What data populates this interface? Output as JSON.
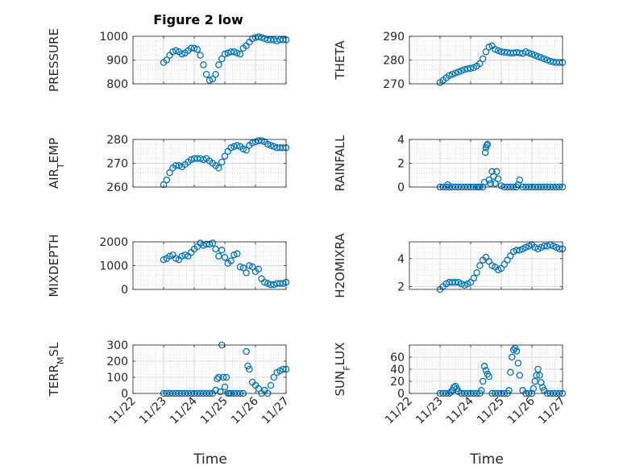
{
  "title": "Figure 2 low",
  "xlabel": "Time",
  "colors": {
    "marker": "#0072BD",
    "axis": "#262626",
    "grid": "#c8c8c8"
  },
  "x_ticks": [
    "11/22",
    "11/23",
    "11/24",
    "11/25",
    "11/26",
    "11/27"
  ],
  "chart_data": [
    {
      "type": "scatter",
      "ylabel": "PRESSURE",
      "ylim": [
        800,
        1000
      ],
      "yticks": [
        800,
        900,
        1000
      ],
      "ytick_labels": [
        "800",
        "900",
        "1000"
      ],
      "grid": true,
      "x": [
        23.0,
        23.1,
        23.2,
        23.3,
        23.4,
        23.5,
        23.6,
        23.7,
        23.8,
        23.9,
        24.0,
        24.1,
        24.2,
        24.3,
        24.4,
        24.5,
        24.6,
        24.7,
        24.8,
        24.9,
        25.0,
        25.1,
        25.2,
        25.3,
        25.4,
        25.5,
        25.6,
        25.7,
        25.8,
        25.9,
        26.0,
        26.1,
        26.2,
        26.3,
        26.4,
        26.5,
        26.6,
        26.7,
        26.8,
        26.9,
        27.0
      ],
      "y": [
        890,
        900,
        920,
        935,
        940,
        935,
        925,
        930,
        940,
        950,
        950,
        945,
        920,
        880,
        840,
        815,
        820,
        840,
        880,
        905,
        925,
        930,
        935,
        935,
        930,
        925,
        950,
        960,
        975,
        990,
        995,
        998,
        995,
        990,
        985,
        985,
        985,
        980,
        985,
        985,
        985
      ]
    },
    {
      "type": "scatter",
      "ylabel": "THETA",
      "ylim": [
        270,
        290
      ],
      "yticks": [
        270,
        280,
        290
      ],
      "ytick_labels": [
        "270",
        "280",
        "290"
      ],
      "grid": true,
      "x": [
        23.0,
        23.1,
        23.2,
        23.3,
        23.4,
        23.5,
        23.6,
        23.7,
        23.8,
        23.9,
        24.0,
        24.1,
        24.2,
        24.3,
        24.4,
        24.5,
        24.6,
        24.7,
        24.8,
        24.9,
        25.0,
        25.1,
        25.2,
        25.3,
        25.4,
        25.5,
        25.6,
        25.7,
        25.8,
        25.9,
        26.0,
        26.1,
        26.2,
        26.3,
        26.4,
        26.5,
        26.6,
        26.7,
        26.8,
        26.9,
        27.0
      ],
      "y": [
        270.5,
        271.5,
        272.5,
        273.5,
        274.0,
        274.5,
        275.0,
        275.5,
        276.0,
        276.3,
        276.5,
        276.8,
        277.5,
        278.5,
        280.5,
        283.5,
        285.5,
        286.0,
        284.5,
        284.0,
        283.5,
        283.3,
        283.2,
        283.0,
        283.0,
        283.2,
        283.0,
        282.8,
        283.5,
        283.0,
        282.5,
        282.0,
        281.5,
        281.0,
        280.5,
        280.0,
        279.5,
        279.2,
        279.0,
        279.0,
        279.0
      ]
    },
    {
      "type": "scatter",
      "ylabel": "AIR_TEMP",
      "ylim": [
        260,
        280
      ],
      "yticks": [
        260,
        270,
        280
      ],
      "ytick_labels": [
        "260",
        "270",
        "280"
      ],
      "grid": true,
      "x": [
        23.0,
        23.1,
        23.2,
        23.3,
        23.4,
        23.5,
        23.6,
        23.7,
        23.8,
        23.9,
        24.0,
        24.1,
        24.2,
        24.3,
        24.4,
        24.5,
        24.6,
        24.7,
        24.8,
        24.9,
        25.0,
        25.1,
        25.2,
        25.3,
        25.4,
        25.5,
        25.6,
        25.7,
        25.8,
        25.9,
        26.0,
        26.1,
        26.2,
        26.3,
        26.4,
        26.5,
        26.6,
        26.7,
        26.8,
        26.9,
        27.0
      ],
      "y": [
        261,
        263,
        266,
        268,
        269,
        269,
        268.5,
        269.5,
        270.5,
        271.5,
        272,
        272,
        272,
        271.5,
        272,
        271,
        270,
        269,
        268,
        270.5,
        273,
        275,
        276.5,
        277,
        277.5,
        277,
        276,
        275.5,
        277.5,
        278.5,
        279,
        279.5,
        279.5,
        279,
        278,
        277.5,
        277,
        276.5,
        276.5,
        276.5,
        276.5
      ]
    },
    {
      "type": "scatter",
      "ylabel": "RAINFALL",
      "ylim": [
        0,
        4
      ],
      "yticks": [
        0,
        2,
        4
      ],
      "ytick_labels": [
        "0",
        "2",
        "4"
      ],
      "grid": true,
      "x": [
        23.0,
        23.1,
        23.2,
        23.25,
        23.3,
        23.4,
        23.5,
        23.6,
        23.7,
        23.8,
        23.9,
        24.0,
        24.1,
        24.2,
        24.25,
        24.3,
        24.4,
        24.45,
        24.48,
        24.5,
        24.52,
        24.55,
        24.6,
        24.65,
        24.7,
        24.75,
        24.8,
        24.85,
        24.9,
        25.0,
        25.1,
        25.2,
        25.3,
        25.4,
        25.5,
        25.55,
        25.6,
        25.7,
        25.8,
        25.9,
        26.0,
        26.1,
        26.2,
        26.3,
        26.4,
        26.5,
        26.6,
        26.7,
        26.8,
        26.9,
        27.0
      ],
      "y": [
        0,
        0,
        0,
        0.2,
        0,
        0,
        0,
        0,
        0,
        0,
        0,
        0,
        0,
        0,
        0,
        0,
        0,
        0.4,
        2.9,
        3.3,
        3.5,
        3.6,
        0.6,
        0.3,
        1.3,
        0.9,
        0.3,
        1.3,
        0.7,
        0.1,
        0,
        0,
        0,
        0,
        0,
        0.2,
        0.6,
        0,
        0,
        0,
        0,
        0,
        0,
        0,
        0,
        0,
        0,
        0,
        0,
        0,
        0
      ]
    },
    {
      "type": "scatter",
      "ylabel": "MIXDEPTH",
      "ylim": [
        0,
        2000
      ],
      "yticks": [
        0,
        1000,
        2000
      ],
      "ytick_labels": [
        "0",
        "1000",
        "2000"
      ],
      "grid": true,
      "x": [
        23.0,
        23.1,
        23.2,
        23.3,
        23.4,
        23.5,
        23.6,
        23.7,
        23.8,
        23.9,
        24.0,
        24.1,
        24.2,
        24.3,
        24.4,
        24.5,
        24.6,
        24.7,
        24.8,
        24.9,
        25.0,
        25.1,
        25.2,
        25.3,
        25.4,
        25.5,
        25.6,
        25.7,
        25.8,
        25.9,
        26.0,
        26.1,
        26.2,
        26.3,
        26.4,
        26.5,
        26.6,
        26.7,
        26.8,
        26.9,
        27.0
      ],
      "y": [
        1250,
        1300,
        1400,
        1450,
        1300,
        1250,
        1400,
        1450,
        1400,
        1550,
        1700,
        1800,
        1950,
        1850,
        1900,
        1900,
        1950,
        1700,
        1400,
        1650,
        1350,
        1100,
        1200,
        1450,
        1500,
        950,
        900,
        700,
        1000,
        950,
        750,
        850,
        450,
        300,
        250,
        200,
        200,
        250,
        250,
        250,
        300
      ]
    },
    {
      "type": "scatter",
      "ylabel": "H2OMIXRA",
      "ylim": [
        1.8,
        5.2
      ],
      "yticks": [
        2,
        4
      ],
      "ytick_labels": [
        "2",
        "4"
      ],
      "grid": true,
      "x": [
        23.0,
        23.1,
        23.2,
        23.3,
        23.4,
        23.5,
        23.6,
        23.7,
        23.8,
        23.9,
        24.0,
        24.1,
        24.2,
        24.3,
        24.4,
        24.5,
        24.6,
        24.7,
        24.8,
        24.9,
        25.0,
        25.1,
        25.2,
        25.3,
        25.4,
        25.5,
        25.6,
        25.7,
        25.8,
        25.9,
        26.0,
        26.1,
        26.2,
        26.3,
        26.4,
        26.5,
        26.6,
        26.7,
        26.8,
        26.9,
        27.0
      ],
      "y": [
        1.8,
        2.0,
        2.2,
        2.3,
        2.3,
        2.3,
        2.3,
        2.2,
        2.1,
        2.2,
        2.3,
        2.6,
        3.0,
        3.5,
        3.9,
        4.1,
        3.8,
        3.5,
        3.4,
        3.2,
        3.3,
        3.6,
        3.9,
        4.2,
        4.5,
        4.6,
        4.6,
        4.7,
        4.8,
        4.9,
        5.0,
        4.8,
        4.7,
        4.8,
        4.9,
        4.9,
        5.0,
        4.9,
        4.8,
        4.7,
        4.7
      ]
    },
    {
      "type": "scatter",
      "ylabel": "TERR_MSL",
      "ylim": [
        0,
        300
      ],
      "yticks": [
        0,
        100,
        200,
        300
      ],
      "ytick_labels": [
        "0",
        "100",
        "200",
        "300"
      ],
      "grid": true,
      "x": [
        23.0,
        23.1,
        23.2,
        23.3,
        23.4,
        23.5,
        23.6,
        23.7,
        23.8,
        23.9,
        24.0,
        24.1,
        24.2,
        24.3,
        24.4,
        24.5,
        24.6,
        24.7,
        24.75,
        24.8,
        24.85,
        24.9,
        24.95,
        25.0,
        25.05,
        25.1,
        25.15,
        25.2,
        25.3,
        25.4,
        25.5,
        25.6,
        25.7,
        25.75,
        25.8,
        25.9,
        26.0,
        26.1,
        26.2,
        26.3,
        26.4,
        26.5,
        26.6,
        26.7,
        26.8,
        26.9,
        27.0
      ],
      "y": [
        0,
        0,
        0,
        0,
        0,
        0,
        0,
        0,
        0,
        0,
        0,
        0,
        0,
        0,
        0,
        0,
        0,
        20,
        90,
        100,
        10,
        300,
        100,
        40,
        100,
        0,
        0,
        0,
        0,
        0,
        0,
        0,
        260,
        170,
        150,
        70,
        50,
        30,
        0,
        20,
        0,
        50,
        100,
        130,
        140,
        150,
        150
      ]
    },
    {
      "type": "scatter",
      "ylabel": "SUN_FLUX",
      "ylim": [
        0,
        80
      ],
      "yticks": [
        0,
        20,
        40,
        60
      ],
      "ytick_labels": [
        "0",
        "20",
        "40",
        "60"
      ],
      "grid": true,
      "x": [
        23.0,
        23.1,
        23.2,
        23.3,
        23.35,
        23.4,
        23.45,
        23.5,
        23.55,
        23.6,
        23.7,
        23.8,
        23.9,
        24.0,
        24.1,
        24.2,
        24.3,
        24.35,
        24.4,
        24.45,
        24.5,
        24.55,
        24.6,
        24.7,
        24.8,
        24.9,
        25.0,
        25.1,
        25.2,
        25.25,
        25.3,
        25.35,
        25.4,
        25.45,
        25.5,
        25.55,
        25.6,
        25.7,
        25.8,
        25.9,
        26.0,
        26.05,
        26.1,
        26.15,
        26.2,
        26.25,
        26.3,
        26.35,
        26.4,
        26.5,
        26.6,
        26.7,
        26.8,
        26.9,
        27.0
      ],
      "y": [
        0,
        0,
        0,
        0,
        2,
        5,
        10,
        12,
        8,
        3,
        0,
        0,
        0,
        0,
        0,
        0,
        0,
        5,
        20,
        45,
        38,
        32,
        28,
        0,
        0,
        0,
        0,
        0,
        0,
        5,
        35,
        60,
        72,
        75,
        70,
        50,
        30,
        5,
        0,
        0,
        0,
        8,
        20,
        30,
        40,
        30,
        18,
        10,
        5,
        0,
        0,
        0,
        0,
        0,
        0
      ]
    }
  ]
}
